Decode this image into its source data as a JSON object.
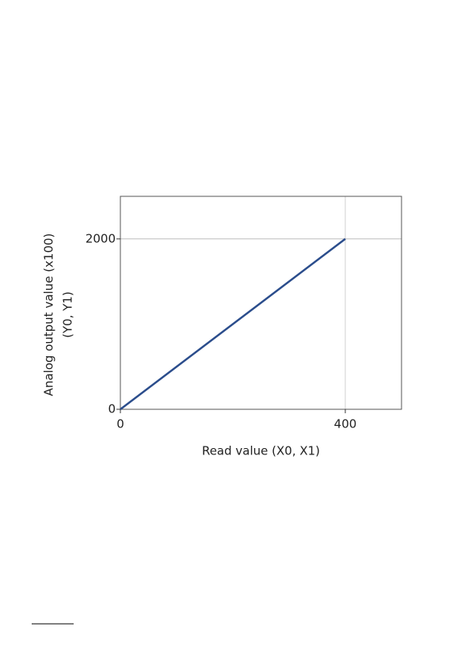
{
  "chart_data": {
    "type": "line",
    "x": [
      0,
      400
    ],
    "series": [
      {
        "name": null,
        "color": "#2b4d8c",
        "values": [
          0,
          2000
        ]
      }
    ],
    "xlim": [
      0,
      500
    ],
    "ylim": [
      0,
      2500
    ],
    "xticks": [
      0,
      400
    ],
    "yticks": [
      0,
      2000
    ],
    "xlabel": "Read value (X0, X1)",
    "ylabel": [
      "Analog output value (x100)",
      "(Y0, Y1)"
    ],
    "grid": true
  }
}
